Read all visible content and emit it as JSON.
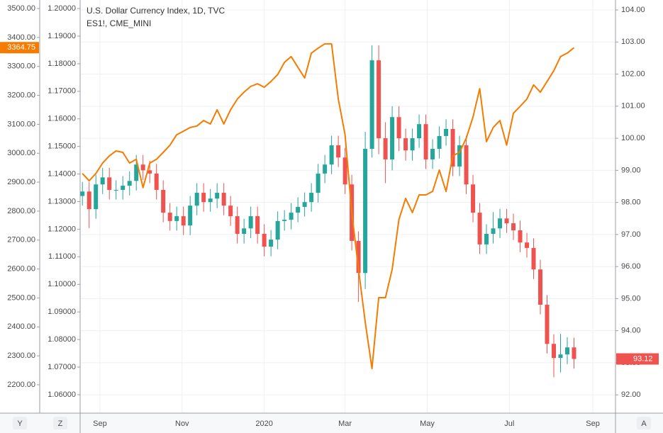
{
  "chart_data": {
    "type": "candlestick",
    "title": "U.S. Dollar Currency Index, 1D, TVC",
    "grid": true,
    "up_color": "#26a69a",
    "down_color": "#ef5350",
    "x": [
      18,
      23,
      28,
      33,
      38,
      43,
      48,
      53,
      58,
      63,
      68,
      73,
      78,
      83,
      88,
      93,
      98,
      103,
      108,
      113,
      118,
      123,
      128,
      133,
      138,
      143,
      148,
      153,
      158,
      163,
      168,
      173,
      178,
      183,
      188,
      193,
      198,
      203,
      208,
      213,
      218,
      223,
      228,
      233,
      238,
      243,
      248,
      253,
      258,
      263,
      268,
      273,
      278,
      283,
      288,
      293,
      298,
      303,
      308,
      313,
      318,
      323,
      328,
      333,
      338,
      343,
      348,
      353,
      358,
      363,
      368,
      373,
      378,
      383
    ],
    "xlim": [
      16.3,
      413.8
    ],
    "xticks": [
      {
        "value": 31,
        "label": "Sep"
      },
      {
        "value": 92,
        "label": "Nov"
      },
      {
        "value": 153,
        "label": "2020"
      },
      {
        "value": 213,
        "label": "Mar"
      },
      {
        "value": 274,
        "label": "May"
      },
      {
        "value": 335,
        "label": "Jul"
      },
      {
        "value": 397,
        "label": "Sep"
      }
    ],
    "open": [
      98.2,
      98.34,
      97.79,
      98.56,
      98.78,
      98.39,
      98.39,
      98.52,
      98.67,
      99.18,
      99.0,
      98.9,
      98.39,
      97.68,
      97.42,
      97.57,
      97.28,
      97.9,
      98.3,
      98.01,
      98.12,
      98.3,
      97.9,
      97.57,
      97.02,
      97.19,
      97.57,
      97.02,
      96.62,
      96.84,
      97.42,
      97.46,
      97.68,
      97.86,
      98.01,
      98.3,
      98.9,
      99.18,
      99.78,
      99.4,
      98.56,
      96.8,
      95.8,
      99.67,
      102.43,
      100.0,
      99.34,
      100.66,
      100.0,
      99.62,
      100.0,
      100.44,
      99.34,
      99.67,
      100.07,
      100.29,
      99.12,
      99.78,
      98.56,
      97.68,
      96.69,
      97.02,
      97.19,
      97.5,
      97.35,
      97.13,
      96.75,
      96.58,
      95.91,
      94.81,
      93.59,
      93.15,
      93.26,
      93.48
    ],
    "high": [
      98.64,
      98.64,
      98.86,
      99.08,
      99.08,
      98.69,
      98.82,
      98.97,
      99.48,
      99.48,
      99.3,
      99.2,
      98.69,
      97.98,
      97.87,
      97.87,
      98.2,
      98.6,
      98.6,
      98.42,
      98.6,
      98.6,
      98.2,
      97.87,
      97.49,
      97.87,
      97.87,
      97.32,
      97.14,
      97.72,
      97.76,
      97.98,
      98.16,
      98.31,
      98.6,
      99.2,
      99.48,
      100.08,
      100.08,
      99.7,
      98.86,
      97.1,
      100.2,
      102.9,
      102.9,
      100.5,
      101.0,
      101.0,
      100.3,
      100.3,
      100.74,
      100.74,
      99.97,
      100.37,
      100.59,
      100.59,
      100.08,
      100.08,
      98.86,
      97.98,
      97.32,
      97.7,
      97.8,
      97.8,
      97.65,
      97.43,
      97.05,
      96.88,
      96.21,
      95.11,
      93.89,
      93.9,
      93.8,
      93.78
    ],
    "low": [
      97.9,
      97.2,
      97.49,
      98.26,
      98.09,
      98.09,
      98.09,
      98.22,
      98.37,
      98.7,
      98.6,
      98.09,
      97.38,
      97.12,
      97.12,
      96.98,
      96.98,
      97.6,
      97.71,
      97.71,
      97.82,
      97.6,
      97.27,
      96.72,
      96.72,
      96.89,
      96.72,
      96.32,
      96.32,
      96.54,
      97.12,
      97.16,
      97.38,
      97.56,
      97.71,
      98.0,
      98.6,
      98.88,
      99.1,
      98.26,
      96.5,
      94.9,
      95.3,
      99.4,
      99.5,
      98.6,
      99.0,
      99.6,
      99.3,
      99.3,
      99.7,
      99.04,
      99.04,
      99.37,
      99.77,
      98.82,
      98.82,
      98.26,
      97.38,
      96.39,
      96.39,
      96.72,
      96.89,
      97.05,
      96.83,
      96.45,
      96.28,
      95.61,
      94.51,
      93.29,
      92.55,
      92.7,
      92.96,
      92.82
    ],
    "close": [
      98.34,
      97.79,
      98.56,
      98.78,
      98.39,
      98.39,
      98.52,
      98.67,
      99.18,
      99.0,
      98.9,
      98.39,
      97.68,
      97.42,
      97.57,
      97.28,
      97.9,
      98.3,
      98.01,
      98.12,
      98.3,
      97.9,
      97.57,
      97.02,
      97.19,
      97.57,
      97.02,
      96.62,
      96.84,
      97.42,
      97.46,
      97.68,
      97.86,
      98.01,
      98.3,
      98.9,
      99.18,
      99.78,
      99.4,
      98.56,
      96.8,
      95.8,
      99.67,
      102.43,
      100.0,
      99.34,
      100.66,
      100.0,
      99.62,
      100.0,
      100.44,
      99.34,
      99.67,
      100.07,
      100.29,
      99.12,
      99.78,
      98.56,
      97.68,
      96.69,
      97.02,
      97.19,
      97.5,
      97.35,
      97.13,
      96.75,
      96.58,
      95.91,
      94.81,
      93.59,
      93.15,
      93.26,
      93.48,
      93.12
    ],
    "ylim": [
      91.43,
      104.31
    ],
    "yticks": [
      {
        "value": 92,
        "label": "92.00"
      },
      {
        "value": 93,
        "label": "93.00"
      },
      {
        "value": 94,
        "label": "94.00"
      },
      {
        "value": 95,
        "label": "95.00"
      },
      {
        "value": 96,
        "label": "96.00"
      },
      {
        "value": 97,
        "label": "97.00"
      },
      {
        "value": 98,
        "label": "98.00"
      },
      {
        "value": 99,
        "label": "99.00"
      },
      {
        "value": 100,
        "label": "100.00"
      },
      {
        "value": 101,
        "label": "101.00"
      },
      {
        "value": 102,
        "label": "102.00"
      },
      {
        "value": 103,
        "label": "103.00"
      },
      {
        "value": 104,
        "label": "104.00"
      }
    ],
    "y2lim": [
      2102,
      3529.4
    ],
    "y2ticks": [
      {
        "value": 2200,
        "label": "2200.00"
      },
      {
        "value": 2300,
        "label": "2300.00"
      },
      {
        "value": 2400,
        "label": "2400.00"
      },
      {
        "value": 2500,
        "label": "2500.00"
      },
      {
        "value": 2600,
        "label": "2600.00"
      },
      {
        "value": 2700,
        "label": "2700.00"
      },
      {
        "value": 2800,
        "label": "2800.00"
      },
      {
        "value": 2900,
        "label": "2900.00"
      },
      {
        "value": 3000,
        "label": "3000.00"
      },
      {
        "value": 3100,
        "label": "3100.00"
      },
      {
        "value": 3200,
        "label": "3200.00"
      },
      {
        "value": 3300,
        "label": "3300.00"
      },
      {
        "value": 3400,
        "label": "3400.00"
      },
      {
        "value": 3500,
        "label": "3500.00"
      }
    ],
    "y3lim": [
      1.0533,
      1.2031
    ],
    "y3ticks": [
      {
        "value": 1.06,
        "label": "1.06000"
      },
      {
        "value": 1.07,
        "label": "1.07000"
      },
      {
        "value": 1.08,
        "label": "1.08000"
      },
      {
        "value": 1.09,
        "label": "1.09000"
      },
      {
        "value": 1.1,
        "label": "1.10000"
      },
      {
        "value": 1.11,
        "label": "1.11000"
      },
      {
        "value": 1.12,
        "label": "1.12000"
      },
      {
        "value": 1.13,
        "label": "1.13000"
      },
      {
        "value": 1.14,
        "label": "1.14000"
      },
      {
        "value": 1.15,
        "label": "1.15000"
      },
      {
        "value": 1.16,
        "label": "1.16000"
      },
      {
        "value": 1.17,
        "label": "1.17000"
      },
      {
        "value": 1.18,
        "label": "1.18000"
      },
      {
        "value": 1.19,
        "label": "1.19000"
      },
      {
        "value": 1.2,
        "label": "1.20000"
      }
    ],
    "series": [
      {
        "name": "ES1!, CME_MINI",
        "color": "#f57c00",
        "axis": "y2",
        "values": [
          2930,
          2905,
          2930,
          2966,
          2991,
          3008,
          3003,
          2966,
          2979,
          2881,
          2966,
          2979,
          3003,
          3028,
          3064,
          3076,
          3089,
          3094,
          3113,
          3101,
          3150,
          3101,
          3150,
          3187,
          3211,
          3231,
          3240,
          3228,
          3248,
          3272,
          3314,
          3334,
          3297,
          3260,
          3346,
          3363,
          3378,
          3378,
          3187,
          3064,
          2795,
          2599,
          2416,
          2256,
          2501,
          2501,
          2599,
          2771,
          2844,
          2795,
          2856,
          2856,
          2868,
          2942,
          2868,
          2991,
          3003,
          3052,
          3125,
          3223,
          3040,
          3089,
          3113,
          3028,
          3138,
          3162,
          3187,
          3236,
          3211,
          3248,
          3285,
          3334,
          3346,
          3364.75
        ]
      }
    ]
  },
  "ui": {
    "buttons": [
      "Y",
      "Z",
      "A"
    ]
  }
}
